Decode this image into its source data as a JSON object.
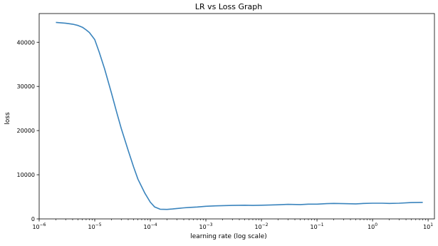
{
  "chart_data": {
    "type": "line",
    "title": "LR vs Loss Graph",
    "xlabel": "learning rate (log scale)",
    "ylabel": "loss",
    "x_scale": "log",
    "xlim": [
      1e-06,
      13.0
    ],
    "ylim": [
      0,
      46500
    ],
    "x_ticks": [
      {
        "value": 1e-06,
        "base": "10",
        "exp": "−6"
      },
      {
        "value": 1e-05,
        "base": "10",
        "exp": "−5"
      },
      {
        "value": 0.0001,
        "base": "10",
        "exp": "−4"
      },
      {
        "value": 0.001,
        "base": "10",
        "exp": "−3"
      },
      {
        "value": 0.01,
        "base": "10",
        "exp": "−2"
      },
      {
        "value": 0.1,
        "base": "10",
        "exp": "−1"
      },
      {
        "value": 1,
        "base": "10",
        "exp": "0"
      },
      {
        "value": 10,
        "base": "10",
        "exp": "1"
      }
    ],
    "y_ticks": [
      0,
      10000,
      20000,
      30000,
      40000
    ],
    "grid": false,
    "line_color": "#3a84bd",
    "series": [
      {
        "x": [
          2e-06,
          3e-06,
          4e-06,
          5e-06,
          6e-06,
          7e-06,
          8e-06,
          1e-05,
          1.2e-05,
          1.5e-05,
          2e-05,
          2.5e-05,
          3e-05,
          4e-05,
          5e-05,
          6e-05,
          8e-05,
          0.0001,
          0.00012,
          0.00015,
          0.0002,
          0.00025,
          0.0003,
          0.0004,
          0.0005,
          0.0007,
          0.001,
          0.0015,
          0.002,
          0.003,
          0.005,
          0.007,
          0.01,
          0.02,
          0.03,
          0.05,
          0.07,
          0.1,
          0.15,
          0.2,
          0.3,
          0.5,
          0.7,
          1,
          1.5,
          2,
          3,
          5,
          8
        ],
        "y": [
          44500,
          44300,
          44100,
          43800,
          43400,
          42800,
          42200,
          40600,
          37800,
          34000,
          28500,
          24000,
          20500,
          15500,
          11800,
          9000,
          5800,
          3800,
          2700,
          2200,
          2150,
          2250,
          2350,
          2500,
          2600,
          2700,
          2850,
          2950,
          3000,
          3050,
          3100,
          3050,
          3100,
          3200,
          3300,
          3250,
          3350,
          3350,
          3450,
          3500,
          3450,
          3400,
          3500,
          3550,
          3550,
          3500,
          3550,
          3700,
          3750
        ]
      }
    ]
  }
}
